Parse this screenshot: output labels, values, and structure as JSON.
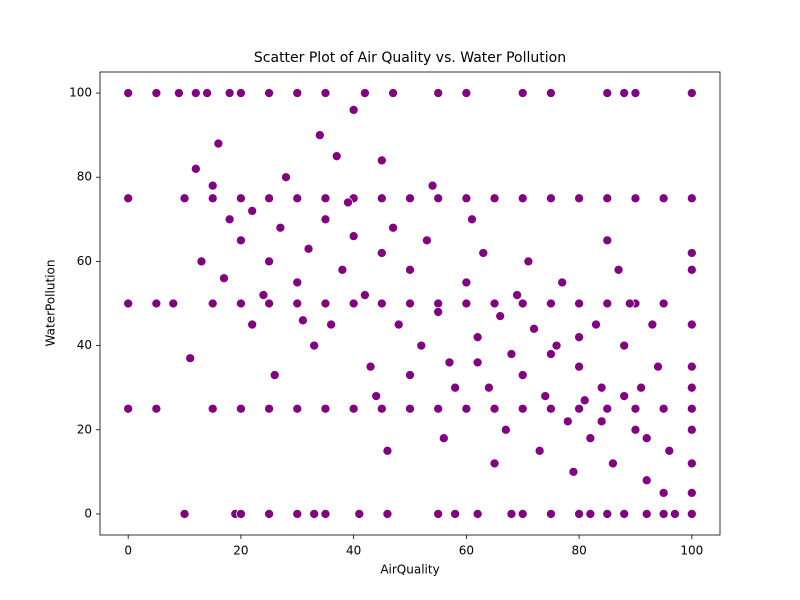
{
  "chart_data": {
    "type": "scatter",
    "title": "Scatter Plot of Air Quality vs. Water Pollution",
    "x_label": "AirQuality",
    "y_label": "WaterPollution",
    "color": "#800080",
    "xlim": [
      -5,
      105
    ],
    "ylim": [
      -5,
      105
    ],
    "xticks": [
      0,
      20,
      40,
      60,
      80,
      100
    ],
    "yticks": [
      0,
      20,
      40,
      60,
      80,
      100
    ],
    "x": [
      0,
      5,
      9,
      12,
      14,
      18,
      20,
      25,
      30,
      35,
      42,
      47,
      55,
      60,
      70,
      75,
      85,
      88,
      90,
      100,
      10,
      19,
      20,
      25,
      30,
      33,
      35,
      41,
      46,
      55,
      58,
      62,
      68,
      70,
      75,
      80,
      82,
      85,
      88,
      92,
      95,
      97,
      100,
      0,
      5,
      8,
      15,
      20,
      25,
      30,
      35,
      40,
      45,
      50,
      55,
      60,
      65,
      70,
      75,
      80,
      85,
      90,
      95,
      0,
      10,
      15,
      20,
      25,
      30,
      35,
      40,
      45,
      50,
      55,
      60,
      65,
      70,
      75,
      80,
      85,
      90,
      95,
      100,
      0,
      5,
      15,
      20,
      25,
      30,
      35,
      40,
      45,
      50,
      55,
      60,
      65,
      70,
      75,
      80,
      85,
      90,
      95,
      100,
      100,
      100,
      100,
      100,
      100,
      100,
      100,
      100,
      12,
      15,
      18,
      20,
      22,
      25,
      27,
      30,
      32,
      35,
      38,
      40,
      42,
      45,
      48,
      50,
      52,
      55,
      57,
      60,
      62,
      64,
      66,
      68,
      70,
      72,
      74,
      76,
      78,
      80,
      82,
      84,
      86,
      88,
      90,
      92,
      94,
      96,
      13,
      16,
      22,
      28,
      33,
      37,
      43,
      47,
      53,
      58,
      63,
      67,
      73,
      77,
      83,
      87,
      91,
      95,
      24,
      31,
      39,
      44,
      56,
      61,
      69,
      79,
      85,
      93,
      11,
      17,
      26,
      34,
      46,
      54,
      65,
      71,
      81,
      89,
      40,
      45,
      36,
      50,
      62,
      75,
      80,
      84,
      88,
      92
    ],
    "y": [
      100,
      100,
      100,
      100,
      100,
      100,
      100,
      100,
      100,
      100,
      100,
      100,
      100,
      100,
      100,
      100,
      100,
      100,
      100,
      100,
      0,
      0,
      0,
      0,
      0,
      0,
      0,
      0,
      0,
      0,
      0,
      0,
      0,
      0,
      0,
      0,
      0,
      0,
      0,
      0,
      0,
      0,
      0,
      50,
      50,
      50,
      50,
      50,
      50,
      50,
      50,
      50,
      50,
      50,
      50,
      50,
      50,
      50,
      50,
      50,
      50,
      50,
      50,
      75,
      75,
      75,
      75,
      75,
      75,
      75,
      75,
      75,
      75,
      75,
      75,
      75,
      75,
      75,
      75,
      75,
      75,
      75,
      75,
      25,
      25,
      25,
      25,
      25,
      25,
      25,
      25,
      25,
      25,
      25,
      25,
      25,
      25,
      25,
      25,
      25,
      25,
      25,
      25,
      5,
      12,
      20,
      30,
      35,
      45,
      58,
      62,
      82,
      78,
      70,
      65,
      72,
      60,
      68,
      55,
      63,
      70,
      58,
      66,
      52,
      62,
      45,
      58,
      40,
      48,
      36,
      55,
      42,
      30,
      47,
      38,
      33,
      44,
      28,
      40,
      22,
      35,
      18,
      30,
      12,
      40,
      20,
      8,
      35,
      15,
      60,
      88,
      45,
      80,
      40,
      85,
      35,
      68,
      65,
      30,
      62,
      20,
      15,
      55,
      45,
      58,
      30,
      5,
      52,
      46,
      74,
      28,
      18,
      70,
      52,
      10,
      65,
      45,
      37,
      56,
      33,
      90,
      15,
      78,
      12,
      60,
      27,
      50,
      96,
      84,
      45,
      33,
      36,
      38,
      42,
      22,
      28,
      18
    ]
  }
}
